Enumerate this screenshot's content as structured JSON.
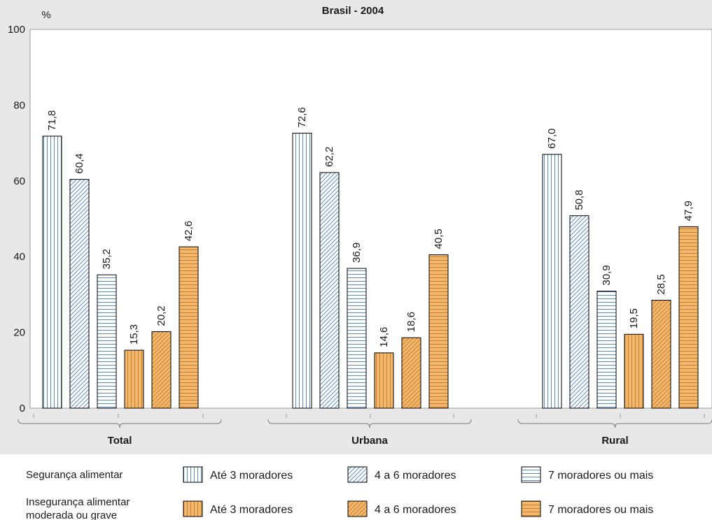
{
  "chart_data": {
    "type": "bar",
    "title": "Brasil - 2004",
    "ylabel": "%",
    "ylim": [
      0,
      100
    ],
    "yticks": [
      "0",
      "20",
      "40",
      "60",
      "80",
      "100"
    ],
    "categories": [
      "Total",
      "Urbana",
      "Rural"
    ],
    "series": [
      {
        "name": "Até 3 moradores",
        "group": "Segurança alimentar",
        "pattern": "vertical",
        "fill": "#ffffff",
        "stroke": "#4a7fb5",
        "values": [
          71.8,
          72.6,
          67.0
        ],
        "labels": [
          "71,8",
          "72,6",
          "67,0"
        ]
      },
      {
        "name": "4 a 6 moradores",
        "group": "Segurança alimentar",
        "pattern": "diagonal",
        "fill": "#ffffff",
        "stroke": "#4a7fb5",
        "values": [
          60.4,
          62.2,
          50.8
        ],
        "labels": [
          "60,4",
          "62,2",
          "50,8"
        ]
      },
      {
        "name": "7 moradores ou mais",
        "group": "Segurança alimentar",
        "pattern": "horizontal",
        "fill": "#ffffff",
        "stroke": "#4a7fb5",
        "values": [
          35.2,
          36.9,
          30.9
        ],
        "labels": [
          "35,2",
          "36,9",
          "30,9"
        ]
      },
      {
        "name": "Até 3 moradores",
        "group": "Insegurança alimentar moderada ou grave",
        "pattern": "vertical",
        "fill": "#f2b870",
        "stroke": "#c77a1e",
        "values": [
          15.3,
          14.6,
          19.5
        ],
        "labels": [
          "15,3",
          "14,6",
          "19,5"
        ]
      },
      {
        "name": "4 a 6 moradores",
        "group": "Insegurança alimentar moderada ou grave",
        "pattern": "diagonal",
        "fill": "#f2b870",
        "stroke": "#c77a1e",
        "values": [
          20.2,
          18.6,
          28.5
        ],
        "labels": [
          "20,2",
          "18,6",
          "28,5"
        ]
      },
      {
        "name": "7 moradores ou mais",
        "group": "Insegurança alimentar moderada ou grave",
        "pattern": "horizontal",
        "fill": "#f2b870",
        "stroke": "#c77a1e",
        "values": [
          42.6,
          40.5,
          47.9
        ],
        "labels": [
          "42,6",
          "40,5",
          "47,9"
        ]
      }
    ],
    "legend": {
      "placement": "bottom",
      "rows": [
        {
          "label": "Segurança alimentar",
          "items": [
            "Até 3 moradores",
            "4 a 6 moradores",
            "7 moradores ou mais"
          ]
        },
        {
          "label_lines": [
            "Insegurança alimentar",
            "moderada ou grave"
          ],
          "items": [
            "Até 3 moradores",
            "4 a 6 moradores",
            "7 moradores ou mais"
          ]
        }
      ]
    },
    "grid": false,
    "colors": {
      "background": "#e8e8e8",
      "plot": "#ffffff",
      "security_stroke": "#4a7fb5",
      "insecurity_fill": "#f2b870",
      "insecurity_stroke": "#c77a1e"
    }
  }
}
